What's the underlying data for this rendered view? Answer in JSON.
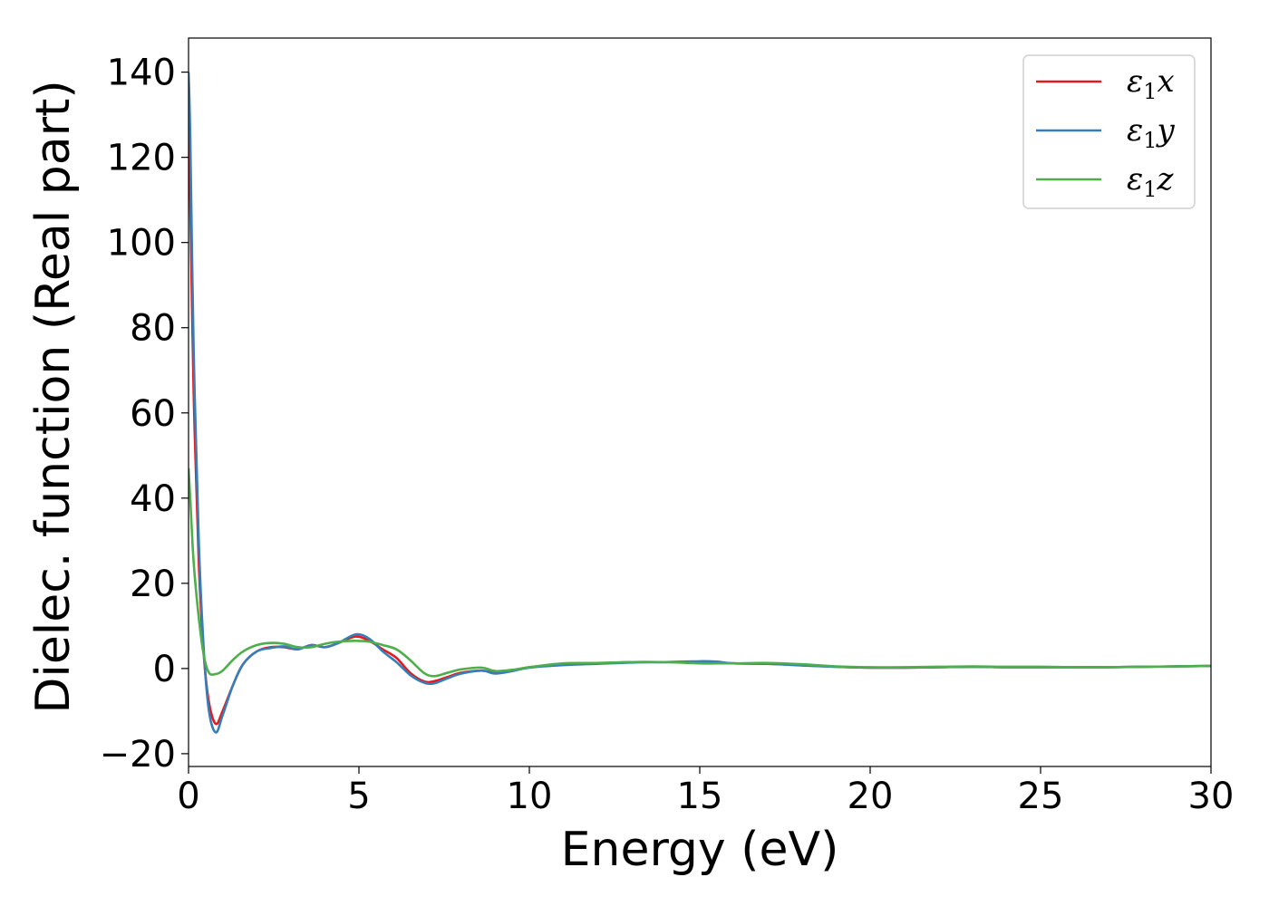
{
  "chart_data": {
    "type": "line",
    "title": "",
    "xlabel": "Energy (eV)",
    "ylabel": "Dielec. function (Real part)",
    "xlim": [
      0,
      30
    ],
    "ylim": [
      -23,
      148
    ],
    "xticks": [
      0,
      5,
      10,
      15,
      20,
      25,
      30
    ],
    "yticks": [
      -20,
      0,
      20,
      40,
      60,
      80,
      100,
      120,
      140
    ],
    "x_tick_labels": [
      "0",
      "5",
      "10",
      "15",
      "20",
      "25",
      "30"
    ],
    "y_tick_labels": [
      "−20",
      "0",
      "20",
      "40",
      "60",
      "80",
      "100",
      "120",
      "140"
    ],
    "grid": false,
    "legend_position": "top-right",
    "series": [
      {
        "name": "ε",
        "name_sub": "1",
        "name_suffix": "x",
        "color": "#e41a1c",
        "x": [
          0,
          0.05,
          0.15,
          0.3,
          0.45,
          0.6,
          0.8,
          1.0,
          1.3,
          1.6,
          2.0,
          2.4,
          2.8,
          3.2,
          3.6,
          4.0,
          4.4,
          4.9,
          5.3,
          5.7,
          6.1,
          6.5,
          6.9,
          7.2,
          7.6,
          8.0,
          8.6,
          9.0,
          9.5,
          10,
          11,
          12,
          13,
          14,
          15,
          15.5,
          16,
          17,
          18,
          19,
          20,
          21,
          22,
          23,
          24,
          25,
          26,
          27,
          28,
          29,
          30
        ],
        "y": [
          126,
          110,
          65,
          25,
          3,
          -8,
          -13,
          -10,
          -4,
          1,
          4,
          5,
          5,
          4.5,
          5.5,
          5,
          6,
          7.5,
          6.5,
          4.5,
          2.5,
          -1,
          -3,
          -3,
          -2,
          -1,
          -0.5,
          -1,
          -0.5,
          0.3,
          1,
          1.2,
          1.5,
          1.5,
          1.5,
          1.4,
          1.2,
          1.1,
          0.8,
          0.4,
          0.2,
          0.2,
          0.3,
          0.4,
          0.3,
          0.3,
          0.3,
          0.3,
          0.4,
          0.5,
          0.6
        ]
      },
      {
        "name": "ε",
        "name_sub": "1",
        "name_suffix": "y",
        "color": "#377eb8",
        "x": [
          0,
          0.05,
          0.15,
          0.3,
          0.45,
          0.6,
          0.8,
          1.0,
          1.3,
          1.6,
          2.0,
          2.4,
          2.8,
          3.2,
          3.6,
          4.0,
          4.4,
          4.9,
          5.3,
          5.7,
          6.1,
          6.5,
          6.9,
          7.2,
          7.6,
          8.0,
          8.6,
          9.0,
          9.5,
          10,
          11,
          12,
          13,
          14,
          15,
          15.5,
          16,
          17,
          18,
          19,
          20,
          21,
          22,
          23,
          24,
          25,
          26,
          27,
          28,
          29,
          30
        ],
        "y": [
          140,
          125,
          75,
          30,
          4,
          -10,
          -15,
          -11,
          -4,
          1,
          4,
          4.8,
          5.2,
          4.5,
          5.5,
          5,
          6,
          8,
          7,
          4,
          1.5,
          -1.5,
          -3.3,
          -3.5,
          -2.3,
          -1.2,
          -0.5,
          -1.2,
          -0.6,
          0.2,
          0.8,
          1.1,
          1.4,
          1.5,
          1.7,
          1.6,
          1.2,
          1.1,
          0.7,
          0.4,
          0.2,
          0.2,
          0.3,
          0.4,
          0.3,
          0.3,
          0.3,
          0.3,
          0.4,
          0.5,
          0.6
        ]
      },
      {
        "name": "ε",
        "name_sub": "1",
        "name_suffix": "z",
        "color": "#4daf4a",
        "x": [
          0,
          0.05,
          0.15,
          0.3,
          0.45,
          0.6,
          0.8,
          1.0,
          1.3,
          1.6,
          2.0,
          2.4,
          2.8,
          3.2,
          3.6,
          4.0,
          4.4,
          4.9,
          5.3,
          5.7,
          6.1,
          6.5,
          6.9,
          7.2,
          7.6,
          8.0,
          8.6,
          9.0,
          9.5,
          10,
          11,
          12,
          13,
          14,
          15,
          15.5,
          16,
          17,
          18,
          19,
          20,
          21,
          22,
          23,
          24,
          25,
          26,
          27,
          28,
          29,
          30
        ],
        "y": [
          47,
          40,
          25,
          12,
          3,
          -1,
          -1.3,
          -0.5,
          2,
          4,
          5.5,
          6,
          5.8,
          5,
          5,
          5.8,
          6.3,
          6.5,
          6.3,
          5.5,
          4.5,
          2,
          -1,
          -1.8,
          -1,
          -0.2,
          0.2,
          -0.6,
          -0.3,
          0.3,
          1.2,
          1.3,
          1.5,
          1.5,
          1.2,
          1.2,
          1.2,
          1.3,
          1.0,
          0.5,
          0.3,
          0.3,
          0.4,
          0.5,
          0.4,
          0.4,
          0.3,
          0.3,
          0.4,
          0.5,
          0.6
        ]
      }
    ]
  }
}
